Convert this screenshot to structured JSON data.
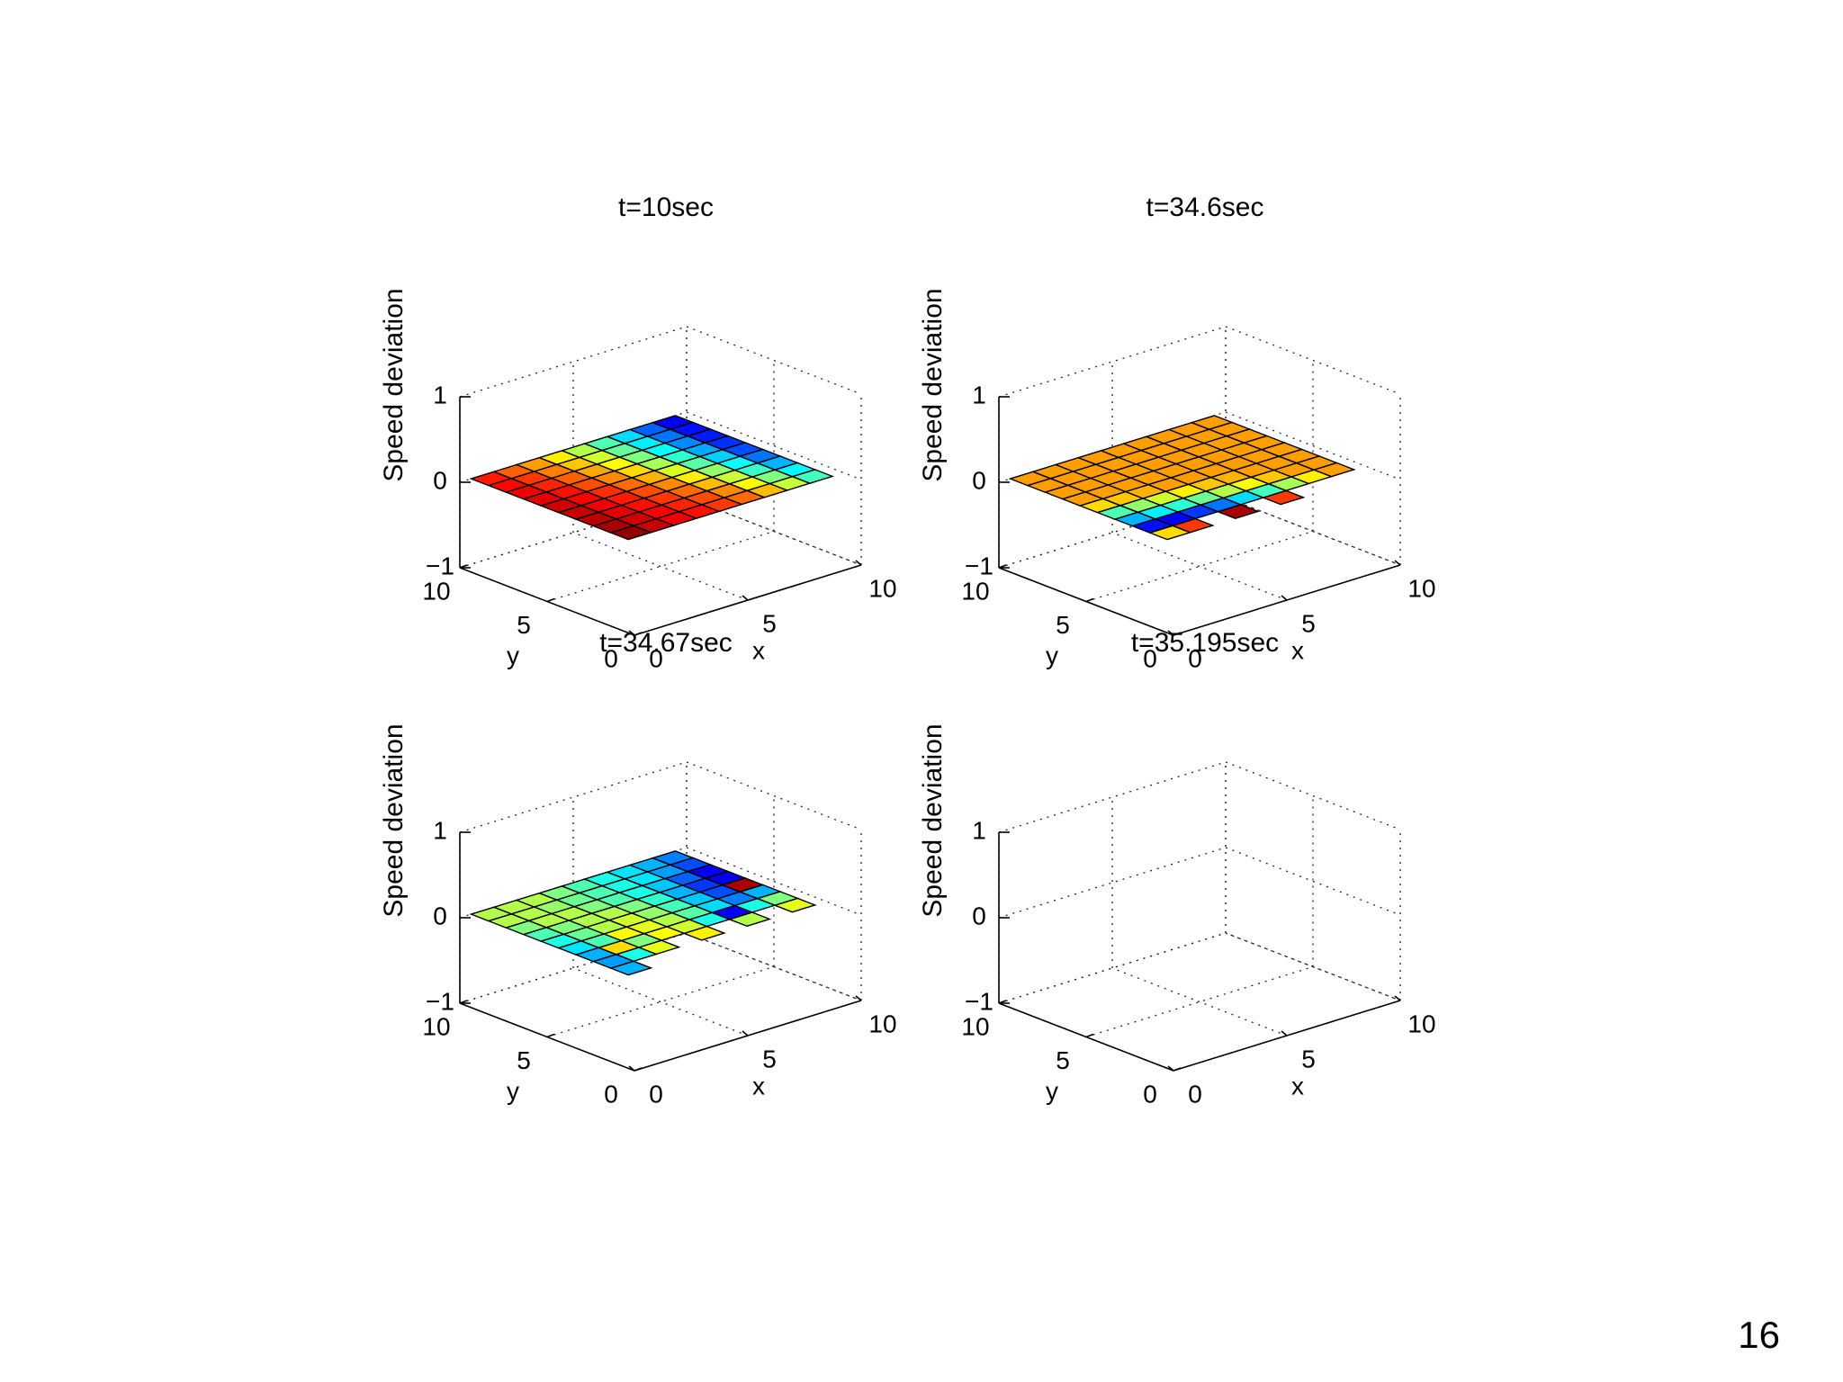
{
  "page_number": "16",
  "chart_data": [
    {
      "type": "surface3d",
      "title": "t=10sec",
      "xlabel": "x",
      "ylabel": "y",
      "zlabel": "Speed deviation",
      "xlim": [
        0,
        10
      ],
      "ylim": [
        0,
        10
      ],
      "zlim": [
        -1,
        1
      ],
      "xticks": [
        "0",
        "5",
        "10"
      ],
      "yticks": [
        "0",
        "5",
        "10"
      ],
      "zticks": [
        "−1",
        "0",
        "1"
      ],
      "grid": true,
      "colormap": "jet",
      "color_values": [
        [
          0.85,
          0.78,
          0.72,
          0.64,
          0.55,
          0.45,
          0.34,
          0.22,
          0.12
        ],
        [
          0.87,
          0.82,
          0.75,
          0.68,
          0.58,
          0.47,
          0.36,
          0.24,
          0.14
        ],
        [
          0.89,
          0.84,
          0.78,
          0.71,
          0.62,
          0.5,
          0.38,
          0.26,
          0.15
        ],
        [
          0.9,
          0.86,
          0.8,
          0.74,
          0.66,
          0.54,
          0.42,
          0.29,
          0.17
        ],
        [
          0.92,
          0.88,
          0.83,
          0.77,
          0.7,
          0.59,
          0.46,
          0.33,
          0.2
        ],
        [
          0.93,
          0.89,
          0.85,
          0.8,
          0.74,
          0.64,
          0.52,
          0.38,
          0.24
        ],
        [
          0.94,
          0.9,
          0.86,
          0.82,
          0.77,
          0.69,
          0.57,
          0.43,
          0.3
        ],
        [
          0.96,
          0.92,
          0.88,
          0.84,
          0.8,
          0.74,
          0.63,
          0.5,
          0.37
        ],
        [
          0.98,
          0.93,
          0.89,
          0.86,
          0.82,
          0.77,
          0.69,
          0.57,
          0.44
        ]
      ]
    },
    {
      "type": "surface3d",
      "title": "t=34.6sec",
      "xlabel": "x",
      "ylabel": "y",
      "zlabel": "Speed deviation",
      "xlim": [
        0,
        10
      ],
      "ylim": [
        0,
        10
      ],
      "zlim": [
        -1,
        1
      ],
      "xticks": [
        "0",
        "5",
        "10"
      ],
      "yticks": [
        "0",
        "5",
        "10"
      ],
      "zticks": [
        "−1",
        "0",
        "1"
      ],
      "grid": true,
      "colormap": "jet",
      "color_values": [
        [
          0.72,
          0.72,
          0.72,
          0.72,
          0.72,
          0.72,
          0.72,
          0.72,
          0.72
        ],
        [
          0.72,
          0.72,
          0.72,
          0.72,
          0.72,
          0.72,
          0.72,
          0.72,
          0.72
        ],
        [
          0.72,
          0.72,
          0.72,
          0.72,
          0.72,
          0.72,
          0.72,
          0.72,
          0.72
        ],
        [
          0.72,
          0.72,
          0.72,
          0.72,
          0.72,
          0.72,
          0.72,
          0.72,
          0.72
        ],
        [
          0.66,
          0.68,
          0.7,
          0.72,
          0.72,
          0.72,
          0.72,
          0.72,
          0.72
        ],
        [
          0.45,
          0.52,
          0.58,
          0.64,
          0.68,
          0.7,
          0.72,
          0.72,
          0.72
        ],
        [
          0.3,
          0.36,
          0.42,
          0.48,
          0.55,
          0.62,
          0.68,
          0.72,
          0.72
        ],
        [
          0.14,
          0.12,
          0.18,
          0.24,
          0.34,
          0.44,
          0.54,
          0.64,
          0.72
        ],
        [
          0.66,
          0.82,
          0.1,
          0.96,
          0.08,
          0.82,
          0.2,
          0.34,
          0.5
        ]
      ],
      "missing_cells": [
        [
          8,
          2
        ],
        [
          8,
          4
        ],
        [
          8,
          6
        ],
        [
          8,
          7
        ],
        [
          8,
          8
        ]
      ]
    },
    {
      "type": "surface3d",
      "title": "t=34.67sec",
      "xlabel": "x",
      "ylabel": "y",
      "zlabel": "Speed deviation",
      "xlim": [
        0,
        10
      ],
      "ylim": [
        0,
        10
      ],
      "zlim": [
        -1,
        1
      ],
      "xticks": [
        "0",
        "5",
        "10"
      ],
      "yticks": [
        "0",
        "5",
        "10"
      ],
      "zticks": [
        "−1",
        "0",
        "1"
      ],
      "grid": true,
      "colormap": "jet",
      "color_values": [
        [
          0.55,
          0.55,
          0.55,
          0.5,
          0.45,
          0.4,
          0.35,
          0.3,
          0.25
        ],
        [
          0.55,
          0.55,
          0.52,
          0.48,
          0.45,
          0.4,
          0.35,
          0.28,
          0.2
        ],
        [
          0.5,
          0.55,
          0.55,
          0.5,
          0.45,
          0.4,
          0.32,
          0.22,
          0.12
        ],
        [
          0.45,
          0.5,
          0.55,
          0.55,
          0.5,
          0.42,
          0.3,
          0.18,
          0.1
        ],
        [
          0.4,
          0.48,
          0.55,
          0.58,
          0.52,
          0.44,
          0.32,
          0.2,
          0.96
        ],
        [
          0.35,
          0.45,
          0.62,
          0.6,
          0.55,
          0.46,
          0.34,
          0.25,
          0.3
        ],
        [
          0.3,
          0.66,
          0.5,
          0.62,
          0.58,
          0.4,
          0.12,
          0.4,
          0.5
        ],
        [
          0.28,
          0.4,
          0.6,
          0.56,
          0.64,
          0.3,
          0.55,
          0.5,
          0.6
        ],
        [
          0.3,
          0.45,
          0.55,
          0.6,
          0.5,
          0.45,
          0.5,
          0.55,
          0.6
        ]
      ],
      "missing_cells": [
        [
          7,
          3
        ],
        [
          7,
          5
        ],
        [
          7,
          7
        ],
        [
          8,
          1
        ],
        [
          8,
          2
        ],
        [
          8,
          3
        ],
        [
          8,
          4
        ],
        [
          8,
          5
        ],
        [
          8,
          6
        ],
        [
          8,
          7
        ],
        [
          8,
          8
        ]
      ]
    },
    {
      "type": "surface3d",
      "title": "t=35.195sec",
      "xlabel": "x",
      "ylabel": "y",
      "zlabel": "Speed deviation",
      "xlim": [
        0,
        10
      ],
      "ylim": [
        0,
        10
      ],
      "zlim": [
        -1,
        1
      ],
      "xticks": [
        "0",
        "5",
        "10"
      ],
      "yticks": [
        "0",
        "5",
        "10"
      ],
      "zticks": [
        "−1",
        "0",
        "1"
      ],
      "grid": true,
      "colormap": "jet",
      "color_values": []
    }
  ]
}
